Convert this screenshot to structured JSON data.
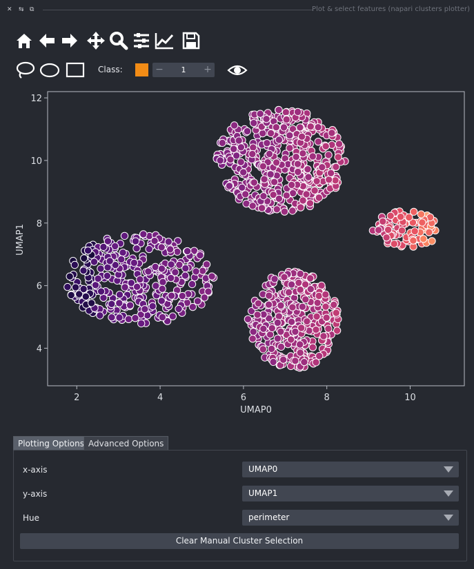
{
  "window": {
    "title": "Plot & select features (napari clusters plotter)",
    "title_icons": [
      "close-icon",
      "float-icon",
      "restore-icon"
    ]
  },
  "toolbar": {
    "icons": [
      "home-icon",
      "back-arrow-icon",
      "forward-arrow-icon",
      "pan-icon",
      "zoom-icon",
      "configure-subplots-icon",
      "edit-axes-icon",
      "save-icon"
    ]
  },
  "selection_tools": {
    "icons": [
      "lasso-icon",
      "ellipse-icon",
      "rectangle-icon",
      "eye-icon"
    ],
    "class_label": "Class:",
    "class_value": "1",
    "class_color": "#f28c16"
  },
  "chart_data": {
    "type": "scatter",
    "xlabel": "UMAP0",
    "ylabel": "UMAP1",
    "xlim": [
      1.3,
      11.3
    ],
    "ylim": [
      2.8,
      12.2
    ],
    "xticks": [
      2,
      4,
      6,
      8,
      10
    ],
    "yticks": [
      4,
      6,
      8,
      10,
      12
    ],
    "grid": false,
    "colormap": "magma",
    "clusters": [
      {
        "cx": 6.9,
        "cy": 10.0,
        "rx": 1.55,
        "ry": 1.65,
        "n": 480,
        "hue_range": [
          0.35,
          0.55
        ]
      },
      {
        "cx": 7.2,
        "cy": 4.9,
        "rx": 1.1,
        "ry": 1.55,
        "n": 330,
        "hue_range": [
          0.4,
          0.55
        ]
      },
      {
        "cx": 3.5,
        "cy": 6.2,
        "rx": 1.8,
        "ry": 1.45,
        "n": 320,
        "hue_range": [
          0.18,
          0.35
        ]
      },
      {
        "cx": 9.9,
        "cy": 7.8,
        "rx": 0.8,
        "ry": 0.6,
        "n": 90,
        "hue_range": [
          0.55,
          0.85
        ]
      }
    ],
    "marker": {
      "edgecolor": "#ffffff"
    }
  },
  "tabs": [
    {
      "label": "Plotting Options"
    },
    {
      "label": "Advanced Options"
    }
  ],
  "options": {
    "x_axis_label": "x-axis",
    "x_axis_value": "UMAP0",
    "y_axis_label": "y-axis",
    "y_axis_value": "UMAP1",
    "hue_label": "Hue",
    "hue_value": "perimeter"
  },
  "clear_button": "Clear Manual Cluster Selection"
}
